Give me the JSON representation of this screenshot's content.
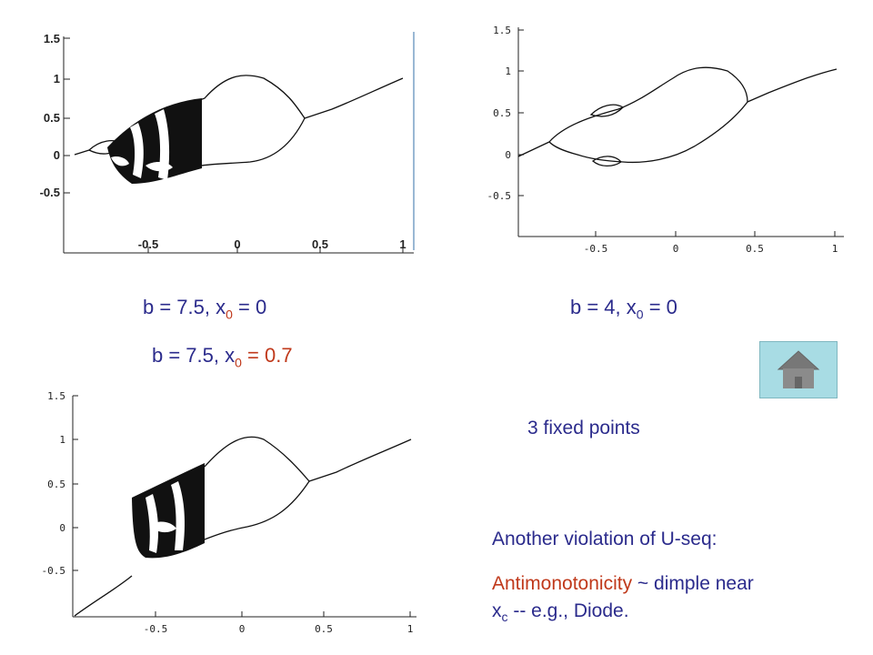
{
  "captions": {
    "top_left": {
      "b": "b = 7.5, x",
      "sub": "0",
      "eq": " = 0"
    },
    "top_right": {
      "b": "b = 4, x",
      "sub": "0",
      "eq": " = 0"
    },
    "bottom_left": {
      "b": "b = 7.5, x",
      "sub": "0",
      "eq": " = 0.7"
    }
  },
  "notes": {
    "fixed_points": "3 fixed points",
    "violation": "Another violation of U-seq:",
    "antimono_red": "Antimonotonicity",
    "antimono_rest": " ~ dimple near",
    "xc_x": "x",
    "xc_sub": "c",
    "xc_rest": " -- e.g., Diode."
  },
  "home_button": {
    "icon": "house-icon"
  },
  "colors": {
    "caption_blue": "#2b2b8c",
    "caption_red": "#c0391b",
    "home_bg": "#a8dce4",
    "house": "#7a7a7a"
  },
  "chart_data": [
    {
      "type": "scatter",
      "title": "",
      "xlabel": "",
      "ylabel": "",
      "xticks": [
        "-0.5",
        "0",
        "0.5",
        "1"
      ],
      "yticks": [
        "1.5",
        "1",
        "0.5",
        "0",
        "-0.5"
      ],
      "xlim": [
        -1,
        1
      ],
      "ylim": [
        -1,
        1.5
      ],
      "parameters": {
        "b": 7.5,
        "x0": 0
      }
    },
    {
      "type": "scatter",
      "title": "",
      "xlabel": "",
      "ylabel": "",
      "xticks": [
        "-0.5",
        "0",
        "0.5",
        "1"
      ],
      "yticks": [
        "1.5",
        "1",
        "0.5",
        "0",
        "-0.5"
      ],
      "xlim": [
        -1,
        1
      ],
      "ylim": [
        -1,
        1.5
      ],
      "parameters": {
        "b": 4,
        "x0": 0
      }
    },
    {
      "type": "scatter",
      "title": "",
      "xlabel": "",
      "ylabel": "",
      "xticks": [
        "-0.5",
        "0",
        "0.5",
        "1"
      ],
      "yticks": [
        "1.5",
        "1",
        "0.5",
        "0",
        "-0.5"
      ],
      "xlim": [
        -1,
        1
      ],
      "ylim": [
        -1,
        1.5
      ],
      "parameters": {
        "b": 7.5,
        "x0": 0.7
      }
    }
  ]
}
